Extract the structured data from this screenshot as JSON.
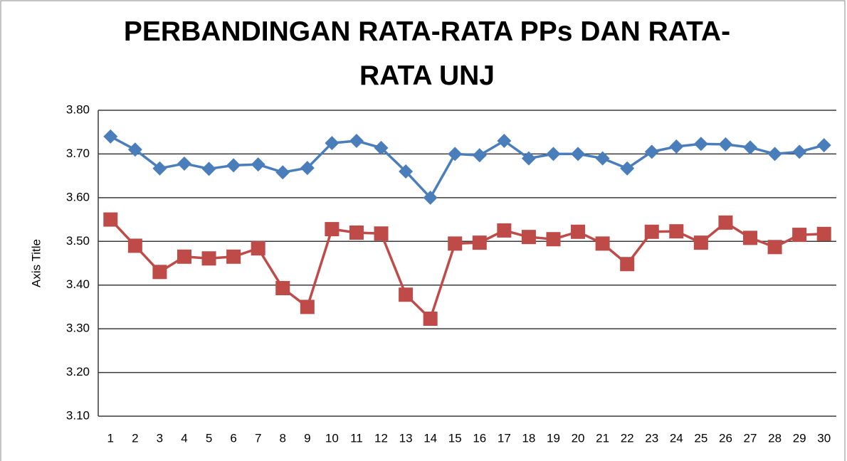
{
  "chart_data": {
    "type": "line",
    "title": "PERBANDINGAN RATA-RATA PPs DAN RATA-RATA UNJ",
    "y_label": "Axis Title",
    "categories": [
      "1",
      "2",
      "3",
      "4",
      "5",
      "6",
      "7",
      "8",
      "9",
      "10",
      "11",
      "12",
      "13",
      "14",
      "15",
      "16",
      "17",
      "18",
      "19",
      "20",
      "21",
      "22",
      "23",
      "24",
      "25",
      "26",
      "27",
      "28",
      "29",
      "30"
    ],
    "series": [
      {
        "color": "#4a7ebb",
        "marker": "diamond",
        "values": [
          3.74,
          3.71,
          3.667,
          3.678,
          3.666,
          3.674,
          3.676,
          3.658,
          3.668,
          3.725,
          3.73,
          3.714,
          3.66,
          3.6,
          3.7,
          3.697,
          3.73,
          3.69,
          3.7,
          3.7,
          3.69,
          3.667,
          3.705,
          3.717,
          3.723,
          3.722,
          3.715,
          3.7,
          3.705,
          3.72
        ]
      },
      {
        "color": "#be4b48",
        "marker": "square",
        "values": [
          3.55,
          3.49,
          3.43,
          3.465,
          3.461,
          3.465,
          3.484,
          3.393,
          3.35,
          3.528,
          3.52,
          3.518,
          3.378,
          3.323,
          3.495,
          3.497,
          3.525,
          3.51,
          3.505,
          3.522,
          3.495,
          3.448,
          3.522,
          3.523,
          3.497,
          3.543,
          3.508,
          3.487,
          3.515,
          3.517
        ]
      }
    ],
    "ylim": [
      3.1,
      3.8
    ],
    "yticks": [
      {
        "value": 3.1,
        "label": "3.10"
      },
      {
        "value": 3.2,
        "label": "3.20"
      },
      {
        "value": 3.3,
        "label": "3.30"
      },
      {
        "value": 3.4,
        "label": "3.40"
      },
      {
        "value": 3.5,
        "label": "3.50"
      },
      {
        "value": 3.6,
        "label": "3.60"
      },
      {
        "value": 3.7,
        "label": "3.70"
      },
      {
        "value": 3.8,
        "label": "3.80"
      }
    ],
    "grid": true
  }
}
